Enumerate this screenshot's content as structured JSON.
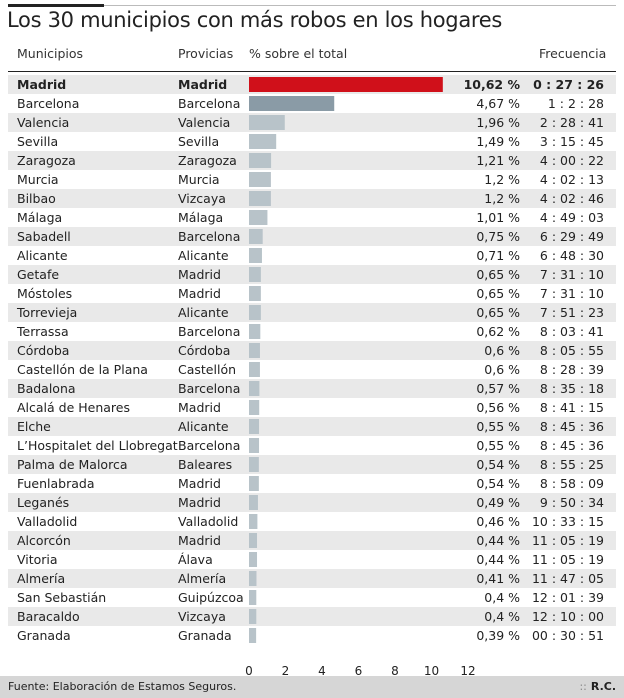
{
  "title": "Los 30 municipios con más robos en los hogares",
  "headers": {
    "municipio": "Municipios",
    "provincia": "Provicias",
    "porcentaje": "% sobre el total",
    "frecuencia": "Frecuencia"
  },
  "footer": {
    "source": "Fuente: Elaboración de Estamos Seguros.",
    "credit": "R.C."
  },
  "colors": {
    "highlight": "#d0101a",
    "second": "#8a9ba6",
    "rest": "#b8c3c9",
    "stripe": "#e9e9e9"
  },
  "chart_data": {
    "type": "bar",
    "orientation": "horizontal",
    "x_ticks": [
      "0",
      "2",
      "4",
      "6",
      "8",
      "10",
      "12"
    ],
    "xlim": [
      0,
      12
    ],
    "rows": [
      {
        "municipio": "Madrid",
        "provincia": "Madrid",
        "value": 10.62,
        "value_label": "10,62 %",
        "frecuencia": "0 : 27 : 26"
      },
      {
        "municipio": "Barcelona",
        "provincia": "Barcelona",
        "value": 4.67,
        "value_label": "4,67 %",
        "frecuencia": "1 : 2 : 28"
      },
      {
        "municipio": "Valencia",
        "provincia": "Valencia",
        "value": 1.96,
        "value_label": "1,96 %",
        "frecuencia": "2 : 28 : 41"
      },
      {
        "municipio": "Sevilla",
        "provincia": "Sevilla",
        "value": 1.49,
        "value_label": "1,49 %",
        "frecuencia": "3 : 15 : 45"
      },
      {
        "municipio": "Zaragoza",
        "provincia": "Zaragoza",
        "value": 1.21,
        "value_label": "1,21 %",
        "frecuencia": "4 : 00 : 22"
      },
      {
        "municipio": "Murcia",
        "provincia": "Murcia",
        "value": 1.2,
        "value_label": "1,2 %",
        "frecuencia": "4 : 02 : 13"
      },
      {
        "municipio": "Bilbao",
        "provincia": "Vizcaya",
        "value": 1.2,
        "value_label": "1,2 %",
        "frecuencia": "4 : 02 : 46"
      },
      {
        "municipio": "Málaga",
        "provincia": "Málaga",
        "value": 1.01,
        "value_label": "1,01 %",
        "frecuencia": "4 : 49 : 03"
      },
      {
        "municipio": "Sabadell",
        "provincia": "Barcelona",
        "value": 0.75,
        "value_label": "0,75 %",
        "frecuencia": "6 : 29 : 49"
      },
      {
        "municipio": "Alicante",
        "provincia": "Alicante",
        "value": 0.71,
        "value_label": "0,71 %",
        "frecuencia": "6 : 48 : 30"
      },
      {
        "municipio": "Getafe",
        "provincia": "Madrid",
        "value": 0.65,
        "value_label": "0,65 %",
        "frecuencia": "7 : 31 : 10"
      },
      {
        "municipio": "Móstoles",
        "provincia": "Madrid",
        "value": 0.65,
        "value_label": "0,65 %",
        "frecuencia": "7 : 31 : 10"
      },
      {
        "municipio": "Torrevieja",
        "provincia": "Alicante",
        "value": 0.65,
        "value_label": "0,65 %",
        "frecuencia": "7 : 51 : 23"
      },
      {
        "municipio": "Terrassa",
        "provincia": "Barcelona",
        "value": 0.62,
        "value_label": "0,62 %",
        "frecuencia": "8 : 03 : 41"
      },
      {
        "municipio": "Córdoba",
        "provincia": "Córdoba",
        "value": 0.6,
        "value_label": "0,6 %",
        "frecuencia": "8 : 05 : 55"
      },
      {
        "municipio": "Castellón de la Plana",
        "provincia": "Castellón",
        "value": 0.6,
        "value_label": "0,6 %",
        "frecuencia": "8 : 28 : 39"
      },
      {
        "municipio": "Badalona",
        "provincia": "Barcelona",
        "value": 0.57,
        "value_label": "0,57 %",
        "frecuencia": "8 : 35 : 18"
      },
      {
        "municipio": "Alcalá de Henares",
        "provincia": "Madrid",
        "value": 0.56,
        "value_label": "0,56 %",
        "frecuencia": "8 : 41 : 15"
      },
      {
        "municipio": "Elche",
        "provincia": "Alicante",
        "value": 0.55,
        "value_label": "0,55 %",
        "frecuencia": "8 : 45 : 36"
      },
      {
        "municipio": "L’Hospitalet del Llobregat",
        "provincia": "Barcelona",
        "value": 0.55,
        "value_label": "0,55 %",
        "frecuencia": "8 : 45 : 36"
      },
      {
        "municipio": "Palma de Malorca",
        "provincia": "Baleares",
        "value": 0.54,
        "value_label": "0,54 %",
        "frecuencia": "8 : 55 : 25"
      },
      {
        "municipio": "Fuenlabrada",
        "provincia": "Madrid",
        "value": 0.54,
        "value_label": "0,54 %",
        "frecuencia": "8 : 58 : 09"
      },
      {
        "municipio": "Leganés",
        "provincia": "Madrid",
        "value": 0.49,
        "value_label": "0,49 %",
        "frecuencia": "9 : 50 : 34"
      },
      {
        "municipio": "Valladolid",
        "provincia": "Valladolid",
        "value": 0.46,
        "value_label": "0,46 %",
        "frecuencia": "10 : 33 : 15"
      },
      {
        "municipio": "Alcorcón",
        "provincia": "Madrid",
        "value": 0.44,
        "value_label": "0,44 %",
        "frecuencia": "11 : 05 : 19"
      },
      {
        "municipio": "Vitoria",
        "provincia": "Álava",
        "value": 0.44,
        "value_label": "0,44 %",
        "frecuencia": "11 : 05 : 19"
      },
      {
        "municipio": "Almería",
        "provincia": "Almería",
        "value": 0.41,
        "value_label": "0,41 %",
        "frecuencia": "11 : 47 : 05"
      },
      {
        "municipio": "San Sebastián",
        "provincia": "Guipúzcoa",
        "value": 0.4,
        "value_label": "0,4 %",
        "frecuencia": "12 : 01 : 39"
      },
      {
        "municipio": "Baracaldo",
        "provincia": "Vizcaya",
        "value": 0.4,
        "value_label": "0,4 %",
        "frecuencia": "12 : 10 : 00"
      },
      {
        "municipio": "Granada",
        "provincia": "Granada",
        "value": 0.39,
        "value_label": "0,39 %",
        "frecuencia": "00 : 30 : 51"
      }
    ]
  }
}
